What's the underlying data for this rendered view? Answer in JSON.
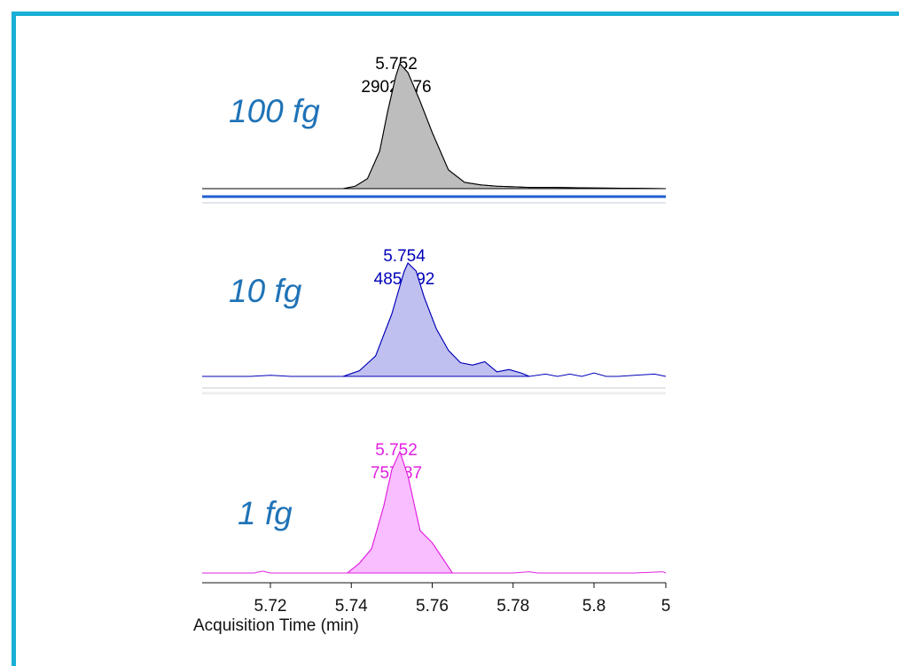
{
  "chart_data": {
    "type": "area",
    "xlabel": "Acquisition Time (min)",
    "xlim": [
      5.7,
      5.82
    ],
    "x_ticks": [
      "5.72",
      "5.74",
      "5.76",
      "5.78",
      "5.8",
      "5"
    ],
    "panels": [
      {
        "name": "100 fg",
        "color": "#000000",
        "fill": "#bdbdbd",
        "peak_rt": "5.752",
        "peak_area": "29029.76",
        "baseline": [
          [
            5.7,
            0.0
          ],
          [
            5.71,
            0.0
          ],
          [
            5.72,
            0.0
          ],
          [
            5.73,
            0.0
          ],
          [
            5.737,
            0.0
          ]
        ],
        "peak": [
          [
            5.738,
            0.0
          ],
          [
            5.741,
            0.02
          ],
          [
            5.744,
            0.08
          ],
          [
            5.747,
            0.3
          ],
          [
            5.749,
            0.62
          ],
          [
            5.751,
            0.9
          ],
          [
            5.752,
            1.0
          ],
          [
            5.754,
            0.93
          ],
          [
            5.757,
            0.7
          ],
          [
            5.76,
            0.45
          ],
          [
            5.764,
            0.15
          ],
          [
            5.768,
            0.05
          ],
          [
            5.772,
            0.03
          ],
          [
            5.776,
            0.02
          ],
          [
            5.78,
            0.015
          ],
          [
            5.784,
            0.01
          ],
          [
            5.79,
            0.01
          ],
          [
            5.8,
            0.005
          ],
          [
            5.81,
            0.003
          ],
          [
            5.818,
            0.0
          ]
        ],
        "tail": [
          [
            5.818,
            0.0
          ],
          [
            5.82,
            0.0
          ]
        ]
      },
      {
        "name": "10 fg",
        "color": "#0000b8",
        "fill": "#bfc0ef",
        "peak_rt": "5.754",
        "peak_area": "4854.92",
        "baseline": [
          [
            5.7,
            0.0
          ],
          [
            5.71,
            0.0
          ],
          [
            5.715,
            0.0
          ],
          [
            5.72,
            0.01
          ],
          [
            5.725,
            0.0
          ],
          [
            5.73,
            0.0
          ],
          [
            5.735,
            0.0
          ],
          [
            5.738,
            0.0
          ]
        ],
        "peak": [
          [
            5.738,
            0.0
          ],
          [
            5.742,
            0.05
          ],
          [
            5.746,
            0.18
          ],
          [
            5.75,
            0.55
          ],
          [
            5.753,
            0.92
          ],
          [
            5.754,
            1.0
          ],
          [
            5.756,
            0.93
          ],
          [
            5.758,
            0.7
          ],
          [
            5.761,
            0.42
          ],
          [
            5.764,
            0.23
          ],
          [
            5.767,
            0.12
          ],
          [
            5.77,
            0.1
          ],
          [
            5.773,
            0.13
          ],
          [
            5.776,
            0.04
          ],
          [
            5.779,
            0.06
          ],
          [
            5.782,
            0.03
          ],
          [
            5.784,
            0.0
          ]
        ],
        "tail": [
          [
            5.784,
            0.0
          ],
          [
            5.788,
            0.02
          ],
          [
            5.791,
            0.0
          ],
          [
            5.794,
            0.02
          ],
          [
            5.797,
            0.0
          ],
          [
            5.8,
            0.03
          ],
          [
            5.803,
            0.0
          ],
          [
            5.806,
            0.0
          ],
          [
            5.81,
            0.01
          ],
          [
            5.815,
            0.02
          ],
          [
            5.82,
            0.0
          ]
        ]
      },
      {
        "name": "1 fg",
        "color": "#e020e0",
        "fill": "#f9beff",
        "peak_rt": "5.752",
        "peak_area": "757.87",
        "baseline": [
          [
            5.7,
            0.0
          ],
          [
            5.71,
            0.0
          ],
          [
            5.716,
            0.0
          ],
          [
            5.718,
            0.015
          ],
          [
            5.72,
            0.0
          ],
          [
            5.73,
            0.0
          ],
          [
            5.738,
            0.0
          ]
        ],
        "peak": [
          [
            5.739,
            0.0
          ],
          [
            5.742,
            0.08
          ],
          [
            5.745,
            0.2
          ],
          [
            5.748,
            0.55
          ],
          [
            5.75,
            0.85
          ],
          [
            5.752,
            1.0
          ],
          [
            5.754,
            0.8
          ],
          [
            5.757,
            0.35
          ],
          [
            5.76,
            0.25
          ],
          [
            5.763,
            0.1
          ],
          [
            5.765,
            0.0
          ]
        ],
        "tail": [
          [
            5.765,
            0.0
          ],
          [
            5.77,
            0.0
          ],
          [
            5.78,
            0.0
          ],
          [
            5.784,
            0.01
          ],
          [
            5.786,
            0.0
          ],
          [
            5.8,
            0.0
          ],
          [
            5.81,
            0.0
          ],
          [
            5.817,
            0.01
          ],
          [
            5.82,
            0.0
          ]
        ]
      }
    ]
  }
}
